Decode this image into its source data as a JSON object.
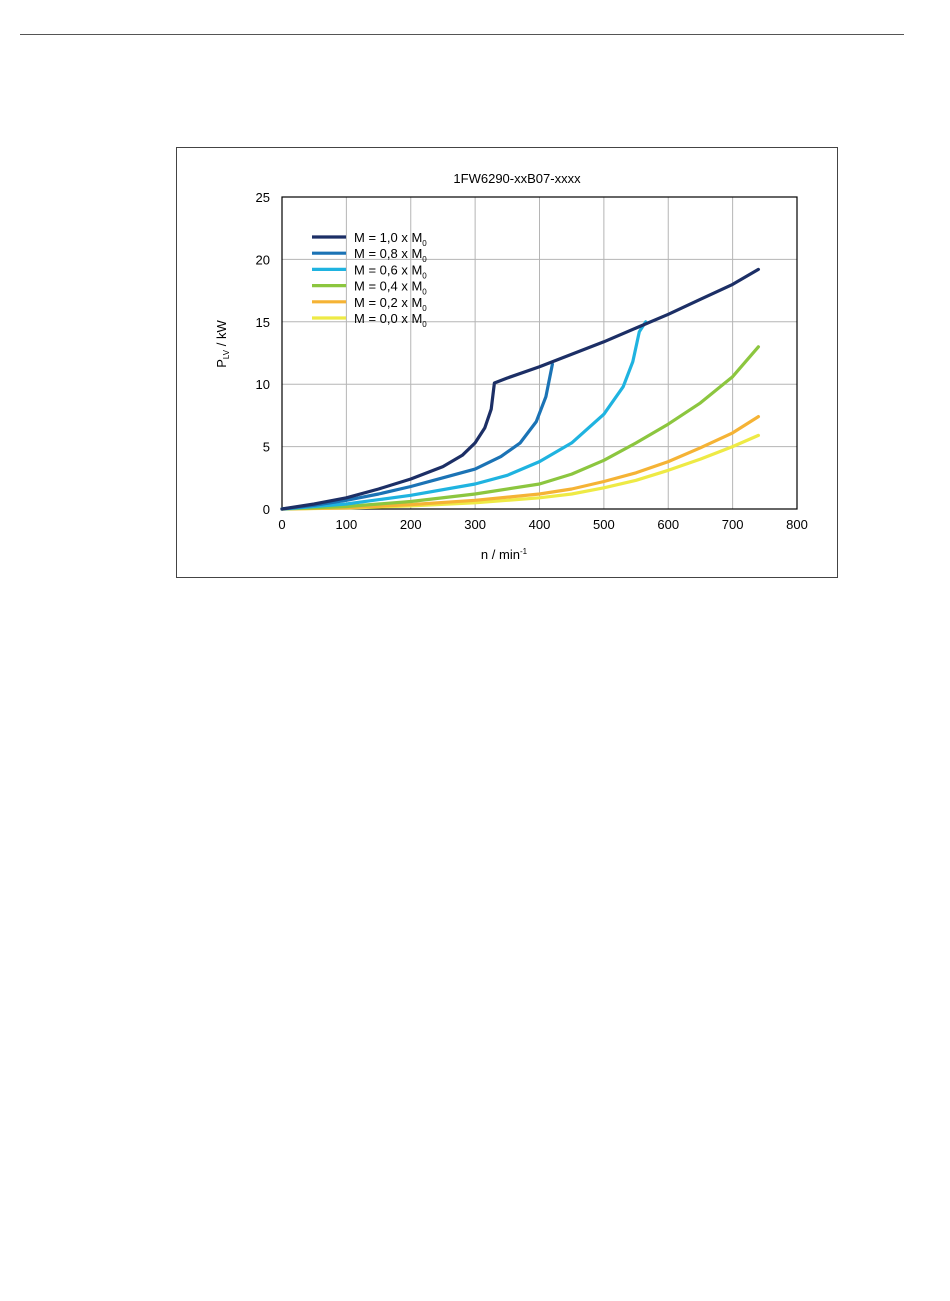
{
  "chart_data": {
    "type": "line",
    "title": "1FW6290-xxB07-xxxx",
    "xlabel": "n / min",
    "xlabel_sup": "-1",
    "ylabel": "P",
    "ylabel_sub": "LV",
    "ylabel_unit": " / kW",
    "xlim": [
      0,
      800
    ],
    "ylim": [
      0,
      25
    ],
    "xticks": [
      0,
      100,
      200,
      300,
      400,
      500,
      600,
      700,
      800
    ],
    "yticks": [
      0,
      5,
      10,
      15,
      20,
      25
    ],
    "grid": true,
    "legend_position": "top-left",
    "series": [
      {
        "name": "M = 1,0 x M",
        "name_sub": "0",
        "color": "#1c2f66",
        "points": [
          [
            0,
            0
          ],
          [
            50,
            0.4
          ],
          [
            100,
            0.9
          ],
          [
            150,
            1.6
          ],
          [
            200,
            2.4
          ],
          [
            250,
            3.4
          ],
          [
            280,
            4.3
          ],
          [
            300,
            5.3
          ],
          [
            315,
            6.5
          ],
          [
            325,
            8.0
          ],
          [
            330,
            10.1
          ],
          [
            350,
            10.5
          ],
          [
            400,
            11.4
          ],
          [
            450,
            12.4
          ],
          [
            500,
            13.4
          ],
          [
            550,
            14.5
          ],
          [
            600,
            15.6
          ],
          [
            650,
            16.8
          ],
          [
            700,
            18.0
          ],
          [
            740,
            19.2
          ]
        ]
      },
      {
        "name": "M = 0,8 x M",
        "name_sub": "0",
        "color": "#1b73b5",
        "points": [
          [
            0,
            0
          ],
          [
            50,
            0.3
          ],
          [
            100,
            0.7
          ],
          [
            150,
            1.2
          ],
          [
            200,
            1.8
          ],
          [
            250,
            2.5
          ],
          [
            300,
            3.2
          ],
          [
            340,
            4.2
          ],
          [
            370,
            5.3
          ],
          [
            395,
            7.0
          ],
          [
            410,
            9.0
          ],
          [
            420,
            11.6
          ]
        ]
      },
      {
        "name": "M = 0,6 x M",
        "name_sub": "0",
        "color": "#1fb3e0",
        "points": [
          [
            0,
            0
          ],
          [
            100,
            0.4
          ],
          [
            200,
            1.1
          ],
          [
            300,
            2.0
          ],
          [
            350,
            2.7
          ],
          [
            400,
            3.8
          ],
          [
            450,
            5.3
          ],
          [
            500,
            7.6
          ],
          [
            530,
            9.8
          ],
          [
            545,
            11.8
          ],
          [
            555,
            14.2
          ],
          [
            565,
            15.0
          ]
        ]
      },
      {
        "name": "M = 0,4 x M",
        "name_sub": "0",
        "color": "#8cc63f",
        "points": [
          [
            0,
            0
          ],
          [
            100,
            0.2
          ],
          [
            200,
            0.6
          ],
          [
            300,
            1.2
          ],
          [
            400,
            2.0
          ],
          [
            450,
            2.8
          ],
          [
            500,
            3.9
          ],
          [
            550,
            5.3
          ],
          [
            600,
            6.8
          ],
          [
            650,
            8.5
          ],
          [
            700,
            10.6
          ],
          [
            740,
            13.0
          ]
        ]
      },
      {
        "name": "M = 0,2 x M",
        "name_sub": "0",
        "color": "#f5b335",
        "points": [
          [
            0,
            0
          ],
          [
            100,
            0.1
          ],
          [
            200,
            0.35
          ],
          [
            300,
            0.7
          ],
          [
            400,
            1.2
          ],
          [
            450,
            1.6
          ],
          [
            500,
            2.2
          ],
          [
            550,
            2.9
          ],
          [
            600,
            3.8
          ],
          [
            650,
            4.9
          ],
          [
            700,
            6.1
          ],
          [
            740,
            7.4
          ]
        ]
      },
      {
        "name": "M = 0,0 x M",
        "name_sub": "0",
        "color": "#eeea45",
        "points": [
          [
            0,
            0
          ],
          [
            100,
            0.08
          ],
          [
            200,
            0.25
          ],
          [
            300,
            0.5
          ],
          [
            400,
            0.9
          ],
          [
            450,
            1.2
          ],
          [
            500,
            1.7
          ],
          [
            550,
            2.3
          ],
          [
            600,
            3.1
          ],
          [
            650,
            4.0
          ],
          [
            700,
            5.0
          ],
          [
            740,
            5.9
          ]
        ]
      }
    ]
  }
}
